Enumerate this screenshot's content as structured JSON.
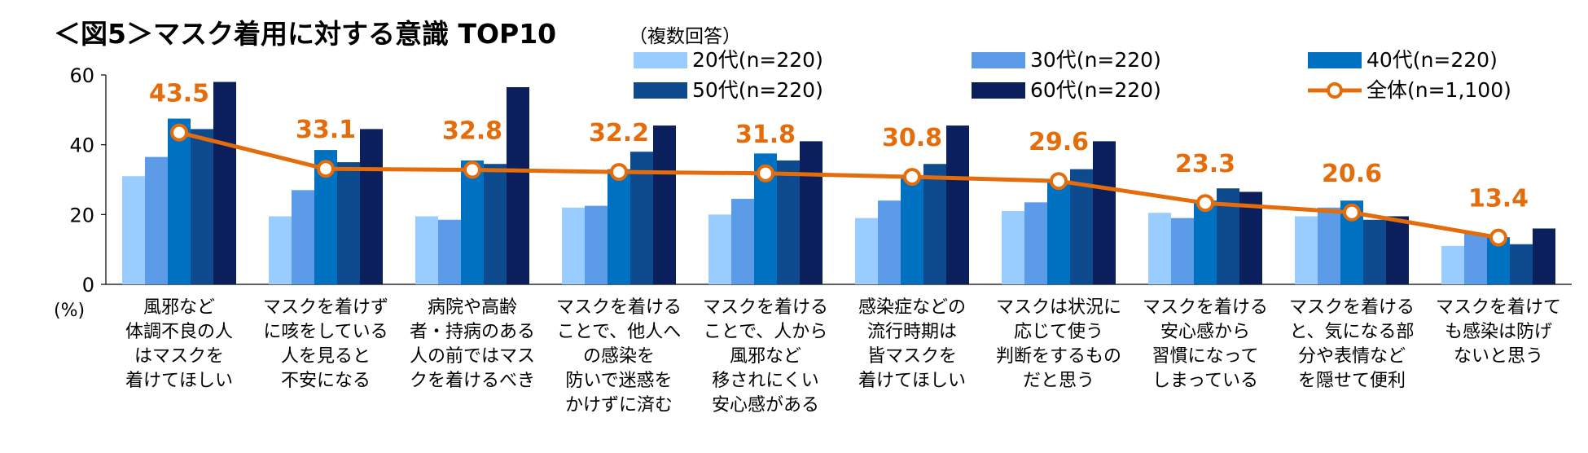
{
  "chart_data": {
    "type": "bar",
    "title": "＜図5＞マスク着用に対する意識 TOP10",
    "subtitle": "（複数回答）",
    "ylabel": "(%)",
    "ylim": [
      0,
      60
    ],
    "yticks": [
      0,
      20,
      40,
      60
    ],
    "categories": [
      [
        "風邪など",
        "体調不良の人",
        "はマスクを",
        "着けてほしい"
      ],
      [
        "マスクを着けず",
        "に咳をしている",
        "人を見ると",
        "不安になる"
      ],
      [
        "病院や高齢",
        "者・持病のある",
        "人の前ではマス",
        "クを着けるべき"
      ],
      [
        "マスクを着ける",
        "ことで、他人へ",
        "の感染を",
        "防いで迷惑を",
        "かけずに済む"
      ],
      [
        "マスクを着ける",
        "ことで、人から",
        "風邪など",
        "移されにくい",
        "安心感がある"
      ],
      [
        "感染症などの",
        "流行時期は",
        "皆マスクを",
        "着けてほしい"
      ],
      [
        "マスクは状況に",
        "応じて使う",
        "判断をするもの",
        "だと思う"
      ],
      [
        "マスクを着ける",
        "安心感から",
        "習慣になって",
        "しまっている"
      ],
      [
        "マスクを着ける",
        "と、気になる部",
        "分や表情など",
        "を隠せて便利"
      ],
      [
        "マスクを着けて",
        "も感染は防げ",
        "ないと思う"
      ]
    ],
    "series": [
      {
        "name": "20代(n=220)",
        "color": "#99CCFF",
        "values": [
          31.0,
          19.5,
          19.5,
          22.0,
          20.0,
          19.0,
          21.0,
          20.5,
          19.5,
          11.0
        ]
      },
      {
        "name": "30代(n=220)",
        "color": "#5B9BE8",
        "values": [
          36.5,
          27.0,
          18.5,
          22.5,
          24.5,
          24.0,
          23.5,
          19.0,
          22.0,
          14.5
        ]
      },
      {
        "name": "40代(n=220)",
        "color": "#0070C0",
        "values": [
          47.5,
          38.5,
          35.5,
          33.0,
          37.5,
          31.0,
          29.5,
          24.0,
          24.0,
          13.5
        ]
      },
      {
        "name": "50代(n=220)",
        "color": "#0D4B8E",
        "values": [
          44.5,
          35.0,
          34.5,
          38.0,
          35.5,
          34.5,
          33.0,
          27.5,
          18.5,
          11.5
        ]
      },
      {
        "name": "60代(n=220)",
        "color": "#0A1F5C",
        "values": [
          58.0,
          44.5,
          56.5,
          45.5,
          41.0,
          45.5,
          41.0,
          26.5,
          19.5,
          16.0
        ]
      }
    ],
    "line": {
      "name": "全体(n=1,100)",
      "color": "#E46C0A",
      "values": [
        43.5,
        33.1,
        32.8,
        32.2,
        31.8,
        30.8,
        29.6,
        23.3,
        20.6,
        13.4
      ],
      "labels": [
        "43.5",
        "33.1",
        "32.8",
        "32.2",
        "31.8",
        "30.8",
        "29.6",
        "23.3",
        "20.6",
        "13.4"
      ]
    },
    "legend": "top-right"
  }
}
